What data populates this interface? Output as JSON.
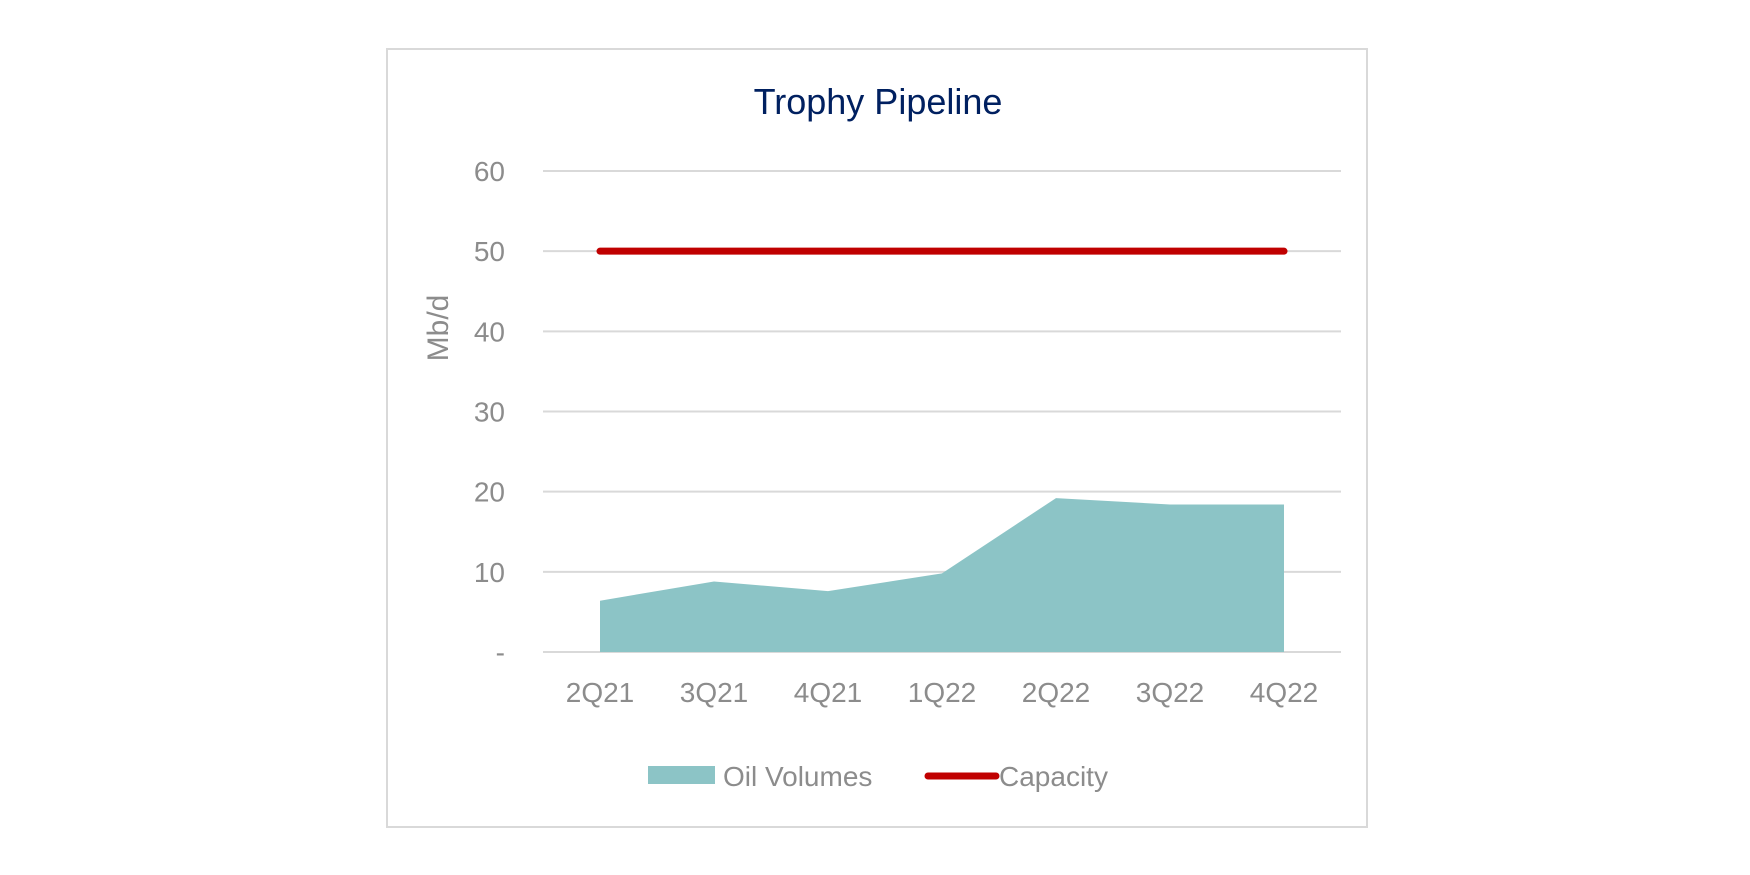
{
  "chart_data": {
    "type": "area",
    "title": "Trophy Pipeline",
    "xlabel": "",
    "ylabel": "Mb/d",
    "categories": [
      "2Q21",
      "3Q21",
      "4Q21",
      "1Q22",
      "2Q22",
      "3Q22",
      "4Q22"
    ],
    "ylim": [
      0,
      60
    ],
    "yticks": [
      0,
      10,
      20,
      30,
      40,
      50,
      60
    ],
    "ytick_labels": [
      "-",
      "10",
      "20",
      "30",
      "40",
      "50",
      "60"
    ],
    "grid": true,
    "legend": "bottom",
    "series": [
      {
        "name": "Oil Volumes",
        "kind": "area",
        "color": "#8cc4c6",
        "values": [
          6.4,
          8.8,
          7.6,
          9.8,
          19.2,
          18.4,
          18.4
        ]
      },
      {
        "name": "Capacity",
        "kind": "line",
        "color": "#c00000",
        "values": [
          50,
          50,
          50,
          50,
          50,
          50,
          50
        ]
      }
    ]
  }
}
